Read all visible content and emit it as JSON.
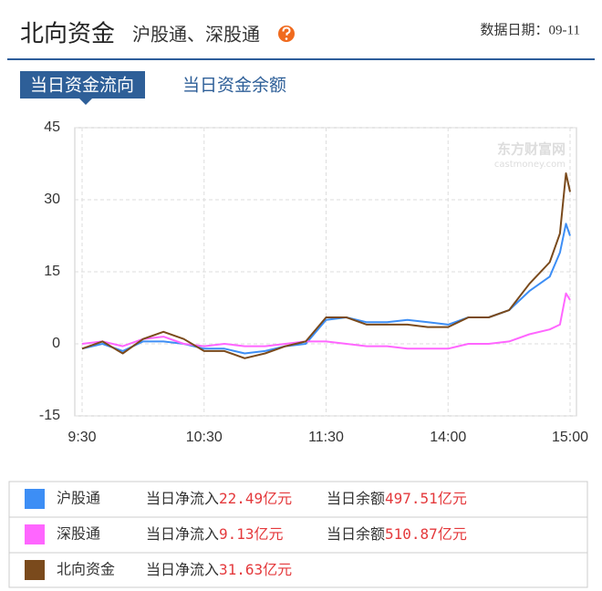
{
  "header": {
    "title": "北向资金",
    "subtitle": "沪股通、深股通",
    "date": "数据日期：09-11"
  },
  "tabs": [
    "当日资金流向",
    "当日资金余额"
  ],
  "chart_data": {
    "type": "line",
    "watermark": "东方财富网",
    "watermark_sub": "castmoney.com",
    "x": [
      "9:30",
      "9:40",
      "9:50",
      "10:00",
      "10:10",
      "10:20",
      "10:30",
      "10:40",
      "10:50",
      "11:00",
      "11:10",
      "11:20",
      "11:30",
      "13:10",
      "13:20",
      "13:30",
      "13:40",
      "13:50",
      "14:00",
      "14:10",
      "14:20",
      "14:30",
      "14:40",
      "14:50",
      "14:55",
      "14:58",
      "15:00"
    ],
    "xticks": [
      "9:30",
      "10:30",
      "11:30",
      "14:00",
      "15:00"
    ],
    "ylim": [
      -15,
      45
    ],
    "yticks": [
      -15,
      0,
      15,
      30,
      45
    ],
    "grid": true,
    "series": [
      {
        "name": "沪股通",
        "color": "#3d8ef5",
        "values": [
          -1,
          0,
          -1.5,
          0.5,
          0.5,
          0,
          -1,
          -1,
          -2,
          -1.5,
          -0.5,
          0,
          5,
          5.5,
          4.5,
          4.5,
          5,
          4.5,
          4,
          5.5,
          5.5,
          7,
          11,
          14,
          19,
          25,
          22.49
        ]
      },
      {
        "name": "深股通",
        "color": "#ff66ff",
        "values": [
          0,
          0.5,
          -0.5,
          1,
          1.5,
          0,
          -0.5,
          0,
          -0.5,
          -0.5,
          0,
          0.5,
          0.5,
          0,
          -0.5,
          -0.5,
          -1,
          -1,
          -1,
          0,
          0,
          0.5,
          2,
          3,
          4,
          10.5,
          9.13
        ]
      },
      {
        "name": "北向资金",
        "color": "#7a4a1c",
        "values": [
          -1,
          0.5,
          -2,
          1,
          2.5,
          1,
          -1.5,
          -1.5,
          -3,
          -2,
          -0.5,
          0.5,
          5.5,
          5.5,
          4,
          4,
          4,
          3.5,
          3.5,
          5.5,
          5.5,
          7,
          12.5,
          17,
          23,
          35.5,
          31.63
        ]
      }
    ]
  },
  "summary": [
    {
      "net_label": "当日净流入",
      "net": "22.49亿元",
      "balance_label": "当日余额",
      "balance": "497.51亿元"
    },
    {
      "net_label": "当日净流入",
      "net": "9.13亿元",
      "balance_label": "当日余额",
      "balance": "510.87亿元"
    },
    {
      "net_label": "当日净流入",
      "net": "31.63亿元"
    }
  ]
}
